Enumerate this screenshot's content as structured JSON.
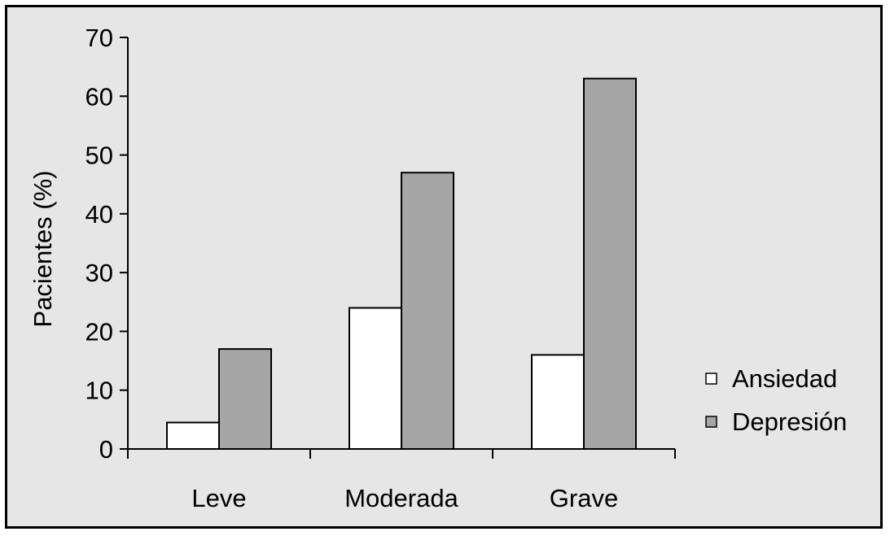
{
  "chart_data": {
    "type": "bar",
    "title": "",
    "xlabel": "",
    "ylabel": "Pacientes (%)",
    "categories": [
      "Leve",
      "Moderada",
      "Grave"
    ],
    "series": [
      {
        "name": "Ansiedad",
        "values": [
          4.5,
          24,
          16
        ],
        "color": "#ffffff"
      },
      {
        "name": "Depresión",
        "values": [
          17,
          47,
          63
        ],
        "color": "#a6a6a6"
      }
    ],
    "ylim": [
      0,
      70
    ],
    "yticks": [
      "0",
      "10",
      "20",
      "30",
      "40",
      "50",
      "60",
      "70"
    ],
    "grid": false,
    "legend_position": "right",
    "background_color": "#e6e6e6",
    "bar_outline_color": "#000000"
  }
}
